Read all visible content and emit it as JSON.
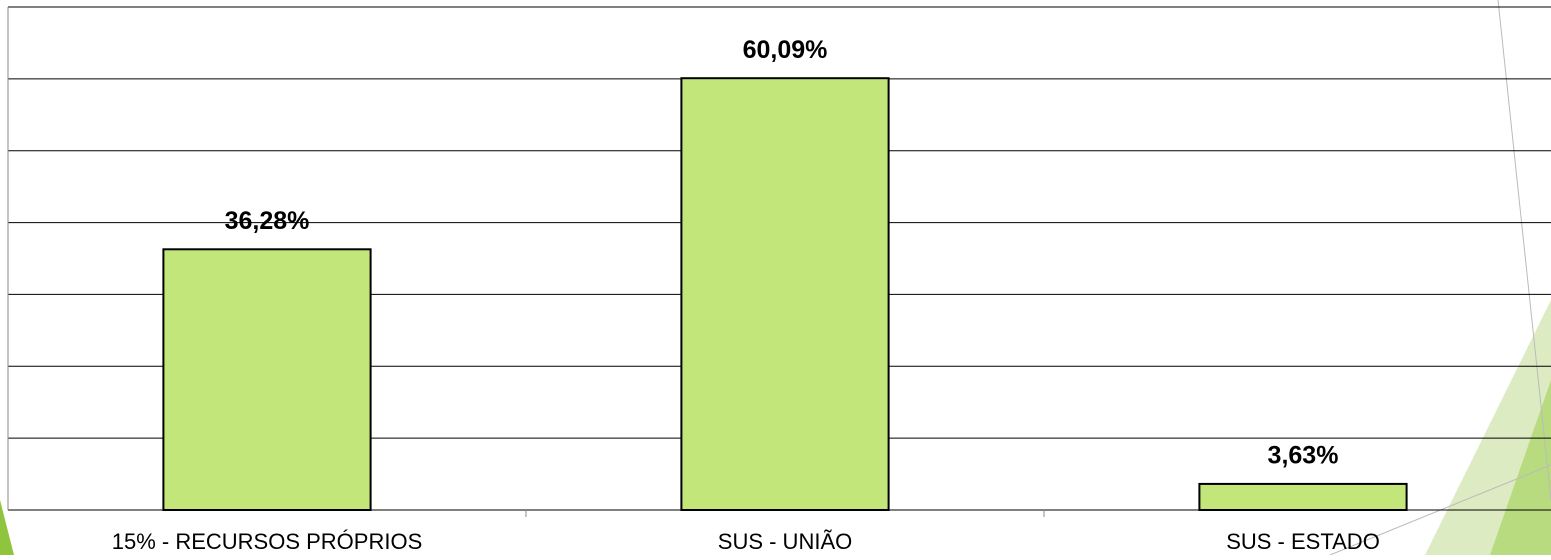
{
  "chart_data": {
    "type": "bar",
    "categories": [
      "15% - RECURSOS PRÓPRIOS",
      "SUS - UNIÃO",
      "SUS - ESTADO"
    ],
    "values": [
      36.28,
      60.09,
      3.63
    ],
    "value_labels": [
      "36,28%",
      "60,09%",
      "3,63%"
    ],
    "color": "#c2e67a",
    "ylim": [
      0,
      70
    ],
    "yticks": [
      0,
      10,
      20,
      30,
      40,
      50,
      60,
      70
    ],
    "grid": true
  }
}
